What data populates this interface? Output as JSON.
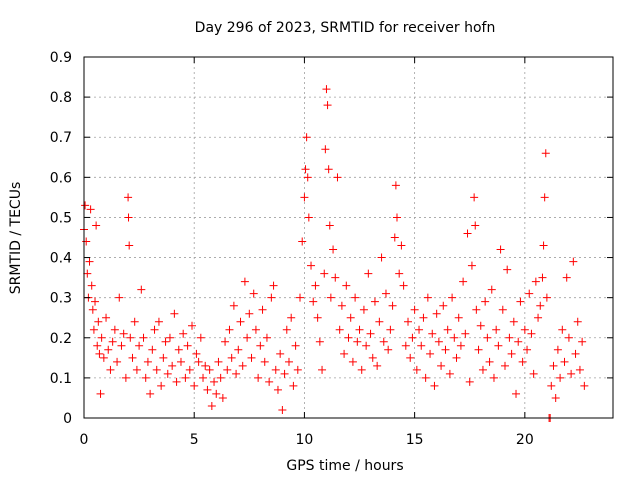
{
  "chart_data": {
    "type": "scatter",
    "title": "Day 296 of 2023, SRMTID for receiver hofn",
    "xlabel": "GPS time / hours",
    "ylabel": "SRMTID / TECUs",
    "xlim": [
      0,
      24
    ],
    "ylim": [
      0,
      0.9
    ],
    "xticks": [
      0,
      5,
      10,
      15,
      20
    ],
    "xtick_labels": [
      "0",
      "5",
      "10",
      "15",
      "20"
    ],
    "yticks": [
      0,
      0.1,
      0.2,
      0.3,
      0.4,
      0.5,
      0.6,
      0.7,
      0.8,
      0.9
    ],
    "ytick_labels": [
      "0",
      "0.1",
      "0.2",
      "0.3",
      "0.4",
      "0.5",
      "0.6",
      "0.7",
      "0.8",
      "0.9"
    ],
    "grid": true,
    "marker": "+",
    "color": "#ff0000",
    "series": [
      {
        "name": "SRMTID",
        "points": [
          [
            0.0,
            0.47
          ],
          [
            0.05,
            0.53
          ],
          [
            0.1,
            0.44
          ],
          [
            0.15,
            0.36
          ],
          [
            0.2,
            0.3
          ],
          [
            0.25,
            0.39
          ],
          [
            0.3,
            0.52
          ],
          [
            0.35,
            0.33
          ],
          [
            0.4,
            0.27
          ],
          [
            0.45,
            0.22
          ],
          [
            0.5,
            0.29
          ],
          [
            0.55,
            0.48
          ],
          [
            0.6,
            0.18
          ],
          [
            0.65,
            0.24
          ],
          [
            0.7,
            0.16
          ],
          [
            0.75,
            0.06
          ],
          [
            0.8,
            0.2
          ],
          [
            0.9,
            0.15
          ],
          [
            1.0,
            0.25
          ],
          [
            1.1,
            0.17
          ],
          [
            1.2,
            0.12
          ],
          [
            1.3,
            0.19
          ],
          [
            1.4,
            0.22
          ],
          [
            1.5,
            0.14
          ],
          [
            1.6,
            0.3
          ],
          [
            1.7,
            0.18
          ],
          [
            1.8,
            0.21
          ],
          [
            1.9,
            0.1
          ],
          [
            2.0,
            0.55
          ],
          [
            2.02,
            0.5
          ],
          [
            2.05,
            0.43
          ],
          [
            2.1,
            0.2
          ],
          [
            2.2,
            0.15
          ],
          [
            2.3,
            0.24
          ],
          [
            2.4,
            0.12
          ],
          [
            2.5,
            0.18
          ],
          [
            2.6,
            0.32
          ],
          [
            2.7,
            0.2
          ],
          [
            2.8,
            0.1
          ],
          [
            2.9,
            0.14
          ],
          [
            3.0,
            0.06
          ],
          [
            3.1,
            0.17
          ],
          [
            3.2,
            0.22
          ],
          [
            3.3,
            0.12
          ],
          [
            3.4,
            0.24
          ],
          [
            3.5,
            0.08
          ],
          [
            3.6,
            0.15
          ],
          [
            3.7,
            0.19
          ],
          [
            3.8,
            0.11
          ],
          [
            3.9,
            0.2
          ],
          [
            4.0,
            0.13
          ],
          [
            4.1,
            0.26
          ],
          [
            4.2,
            0.09
          ],
          [
            4.3,
            0.17
          ],
          [
            4.4,
            0.14
          ],
          [
            4.5,
            0.21
          ],
          [
            4.6,
            0.1
          ],
          [
            4.7,
            0.18
          ],
          [
            4.8,
            0.12
          ],
          [
            4.9,
            0.23
          ],
          [
            5.0,
            0.08
          ],
          [
            5.1,
            0.16
          ],
          [
            5.2,
            0.14
          ],
          [
            5.3,
            0.2
          ],
          [
            5.4,
            0.1
          ],
          [
            5.5,
            0.13
          ],
          [
            5.6,
            0.07
          ],
          [
            5.7,
            0.12
          ],
          [
            5.8,
            0.03
          ],
          [
            5.9,
            0.09
          ],
          [
            6.0,
            0.06
          ],
          [
            6.1,
            0.14
          ],
          [
            6.2,
            0.1
          ],
          [
            6.3,
            0.05
          ],
          [
            6.4,
            0.19
          ],
          [
            6.5,
            0.12
          ],
          [
            6.6,
            0.22
          ],
          [
            6.7,
            0.15
          ],
          [
            6.8,
            0.28
          ],
          [
            6.9,
            0.11
          ],
          [
            7.0,
            0.17
          ],
          [
            7.1,
            0.24
          ],
          [
            7.2,
            0.13
          ],
          [
            7.3,
            0.34
          ],
          [
            7.4,
            0.2
          ],
          [
            7.5,
            0.26
          ],
          [
            7.6,
            0.15
          ],
          [
            7.7,
            0.31
          ],
          [
            7.8,
            0.22
          ],
          [
            7.9,
            0.1
          ],
          [
            8.0,
            0.18
          ],
          [
            8.1,
            0.27
          ],
          [
            8.2,
            0.14
          ],
          [
            8.3,
            0.2
          ],
          [
            8.4,
            0.09
          ],
          [
            8.5,
            0.3
          ],
          [
            8.6,
            0.33
          ],
          [
            8.7,
            0.12
          ],
          [
            8.8,
            0.07
          ],
          [
            8.9,
            0.16
          ],
          [
            9.0,
            0.02
          ],
          [
            9.1,
            0.11
          ],
          [
            9.2,
            0.22
          ],
          [
            9.3,
            0.14
          ],
          [
            9.4,
            0.25
          ],
          [
            9.5,
            0.08
          ],
          [
            9.6,
            0.18
          ],
          [
            9.7,
            0.12
          ],
          [
            9.8,
            0.3
          ],
          [
            9.9,
            0.44
          ],
          [
            10.0,
            0.55
          ],
          [
            10.05,
            0.62
          ],
          [
            10.1,
            0.7
          ],
          [
            10.15,
            0.6
          ],
          [
            10.2,
            0.5
          ],
          [
            10.3,
            0.38
          ],
          [
            10.4,
            0.29
          ],
          [
            10.5,
            0.33
          ],
          [
            10.6,
            0.25
          ],
          [
            10.7,
            0.19
          ],
          [
            10.8,
            0.12
          ],
          [
            10.9,
            0.36
          ],
          [
            10.95,
            0.67
          ],
          [
            11.0,
            0.82
          ],
          [
            11.05,
            0.78
          ],
          [
            11.1,
            0.62
          ],
          [
            11.15,
            0.48
          ],
          [
            11.2,
            0.3
          ],
          [
            11.3,
            0.42
          ],
          [
            11.4,
            0.35
          ],
          [
            11.5,
            0.6
          ],
          [
            11.6,
            0.22
          ],
          [
            11.7,
            0.28
          ],
          [
            11.8,
            0.16
          ],
          [
            11.9,
            0.33
          ],
          [
            12.0,
            0.2
          ],
          [
            12.1,
            0.25
          ],
          [
            12.2,
            0.14
          ],
          [
            12.3,
            0.3
          ],
          [
            12.4,
            0.19
          ],
          [
            12.5,
            0.22
          ],
          [
            12.6,
            0.12
          ],
          [
            12.7,
            0.27
          ],
          [
            12.8,
            0.18
          ],
          [
            12.9,
            0.36
          ],
          [
            13.0,
            0.21
          ],
          [
            13.1,
            0.15
          ],
          [
            13.2,
            0.29
          ],
          [
            13.3,
            0.13
          ],
          [
            13.4,
            0.24
          ],
          [
            13.5,
            0.4
          ],
          [
            13.6,
            0.19
          ],
          [
            13.7,
            0.31
          ],
          [
            13.8,
            0.17
          ],
          [
            13.9,
            0.22
          ],
          [
            14.0,
            0.28
          ],
          [
            14.1,
            0.45
          ],
          [
            14.15,
            0.58
          ],
          [
            14.2,
            0.5
          ],
          [
            14.3,
            0.36
          ],
          [
            14.4,
            0.43
          ],
          [
            14.5,
            0.33
          ],
          [
            14.6,
            0.18
          ],
          [
            14.7,
            0.24
          ],
          [
            14.8,
            0.15
          ],
          [
            14.9,
            0.2
          ],
          [
            15.0,
            0.27
          ],
          [
            15.1,
            0.12
          ],
          [
            15.2,
            0.22
          ],
          [
            15.3,
            0.18
          ],
          [
            15.4,
            0.25
          ],
          [
            15.5,
            0.1
          ],
          [
            15.6,
            0.3
          ],
          [
            15.7,
            0.16
          ],
          [
            15.8,
            0.21
          ],
          [
            15.9,
            0.08
          ],
          [
            16.0,
            0.26
          ],
          [
            16.1,
            0.19
          ],
          [
            16.2,
            0.13
          ],
          [
            16.3,
            0.28
          ],
          [
            16.4,
            0.17
          ],
          [
            16.5,
            0.22
          ],
          [
            16.6,
            0.11
          ],
          [
            16.7,
            0.3
          ],
          [
            16.8,
            0.2
          ],
          [
            16.9,
            0.15
          ],
          [
            17.0,
            0.25
          ],
          [
            17.1,
            0.18
          ],
          [
            17.2,
            0.34
          ],
          [
            17.3,
            0.21
          ],
          [
            17.4,
            0.46
          ],
          [
            17.5,
            0.09
          ],
          [
            17.6,
            0.38
          ],
          [
            17.7,
            0.55
          ],
          [
            17.75,
            0.48
          ],
          [
            17.8,
            0.27
          ],
          [
            17.9,
            0.17
          ],
          [
            18.0,
            0.23
          ],
          [
            18.1,
            0.12
          ],
          [
            18.2,
            0.29
          ],
          [
            18.3,
            0.2
          ],
          [
            18.4,
            0.14
          ],
          [
            18.5,
            0.32
          ],
          [
            18.6,
            0.1
          ],
          [
            18.7,
            0.22
          ],
          [
            18.8,
            0.18
          ],
          [
            18.9,
            0.42
          ],
          [
            19.0,
            0.27
          ],
          [
            19.1,
            0.13
          ],
          [
            19.2,
            0.37
          ],
          [
            19.3,
            0.2
          ],
          [
            19.4,
            0.16
          ],
          [
            19.5,
            0.24
          ],
          [
            19.6,
            0.06
          ],
          [
            19.7,
            0.19
          ],
          [
            19.8,
            0.29
          ],
          [
            19.9,
            0.14
          ],
          [
            20.0,
            0.22
          ],
          [
            20.1,
            0.17
          ],
          [
            20.2,
            0.31
          ],
          [
            20.3,
            0.21
          ],
          [
            20.4,
            0.11
          ],
          [
            20.5,
            0.34
          ],
          [
            20.6,
            0.25
          ],
          [
            20.7,
            0.28
          ],
          [
            20.8,
            0.35
          ],
          [
            20.85,
            0.43
          ],
          [
            20.9,
            0.55
          ],
          [
            20.95,
            0.66
          ],
          [
            21.0,
            0.3
          ],
          [
            21.1,
            0.0
          ],
          [
            21.15,
            0.0
          ],
          [
            21.2,
            0.08
          ],
          [
            21.3,
            0.13
          ],
          [
            21.4,
            0.05
          ],
          [
            21.5,
            0.17
          ],
          [
            21.6,
            0.1
          ],
          [
            21.7,
            0.22
          ],
          [
            21.8,
            0.14
          ],
          [
            21.9,
            0.35
          ],
          [
            22.0,
            0.2
          ],
          [
            22.1,
            0.11
          ],
          [
            22.2,
            0.39
          ],
          [
            22.3,
            0.16
          ],
          [
            22.4,
            0.24
          ],
          [
            22.5,
            0.12
          ],
          [
            22.6,
            0.19
          ],
          [
            22.7,
            0.08
          ]
        ]
      }
    ]
  }
}
